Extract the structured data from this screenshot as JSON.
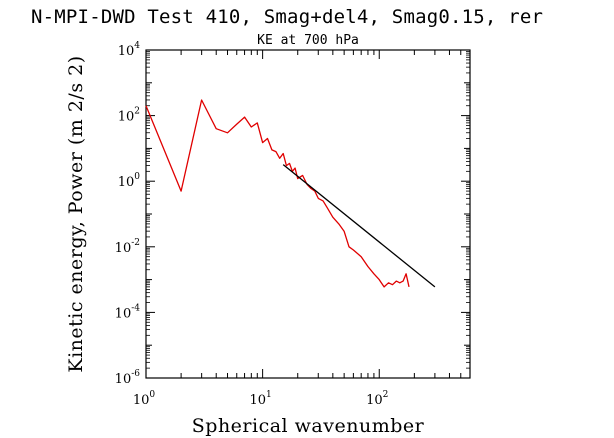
{
  "chart_data": {
    "type": "line",
    "title": "N-MPI-DWD Test 410, Smag+del4, Smag0.15, rer",
    "subtitle": "KE at 700 hPa",
    "xlabel": "Spherical wavenumber",
    "ylabel": "Kinetic energy, Power (m 2/s 2)",
    "xscale": "log",
    "yscale": "log",
    "xlim": [
      1,
      600
    ],
    "ylim": [
      1e-06,
      10000
    ],
    "x_ticks": [
      {
        "base": "10",
        "exp": "0"
      },
      {
        "base": "10",
        "exp": "1"
      },
      {
        "base": "10",
        "exp": "2"
      }
    ],
    "y_ticks": [
      {
        "base": "10",
        "exp": "4"
      },
      {
        "base": "10",
        "exp": "2"
      },
      {
        "base": "10",
        "exp": "0"
      },
      {
        "base": "10",
        "exp": "-2"
      },
      {
        "base": "10",
        "exp": "-4"
      },
      {
        "base": "10",
        "exp": "-6"
      }
    ],
    "series": [
      {
        "color": "#e00000",
        "x": [
          1,
          2,
          3,
          4,
          5,
          6,
          7,
          8,
          9,
          10,
          11,
          12,
          13,
          14,
          15,
          16,
          17,
          18,
          19,
          20,
          22,
          24,
          26,
          28,
          30,
          33,
          36,
          40,
          45,
          50,
          55,
          60,
          70,
          80,
          90,
          100,
          110,
          120,
          130,
          140,
          150,
          160,
          170,
          180
        ],
        "y": [
          200,
          0.5,
          300,
          40,
          30,
          55,
          90,
          45,
          60,
          15,
          20,
          9,
          8,
          5,
          7,
          3,
          3.5,
          2,
          2.5,
          1.2,
          1.5,
          0.8,
          0.6,
          0.5,
          0.3,
          0.25,
          0.15,
          0.08,
          0.05,
          0.03,
          0.01,
          0.008,
          0.005,
          0.0025,
          0.0015,
          0.001,
          0.0006,
          0.0008,
          0.0007,
          0.0009,
          0.0008,
          0.0009,
          0.0015,
          0.0006
        ]
      },
      {
        "color": "#000000",
        "x": [
          15,
          300
        ],
        "y": [
          3.2,
          0.0006
        ]
      }
    ]
  }
}
